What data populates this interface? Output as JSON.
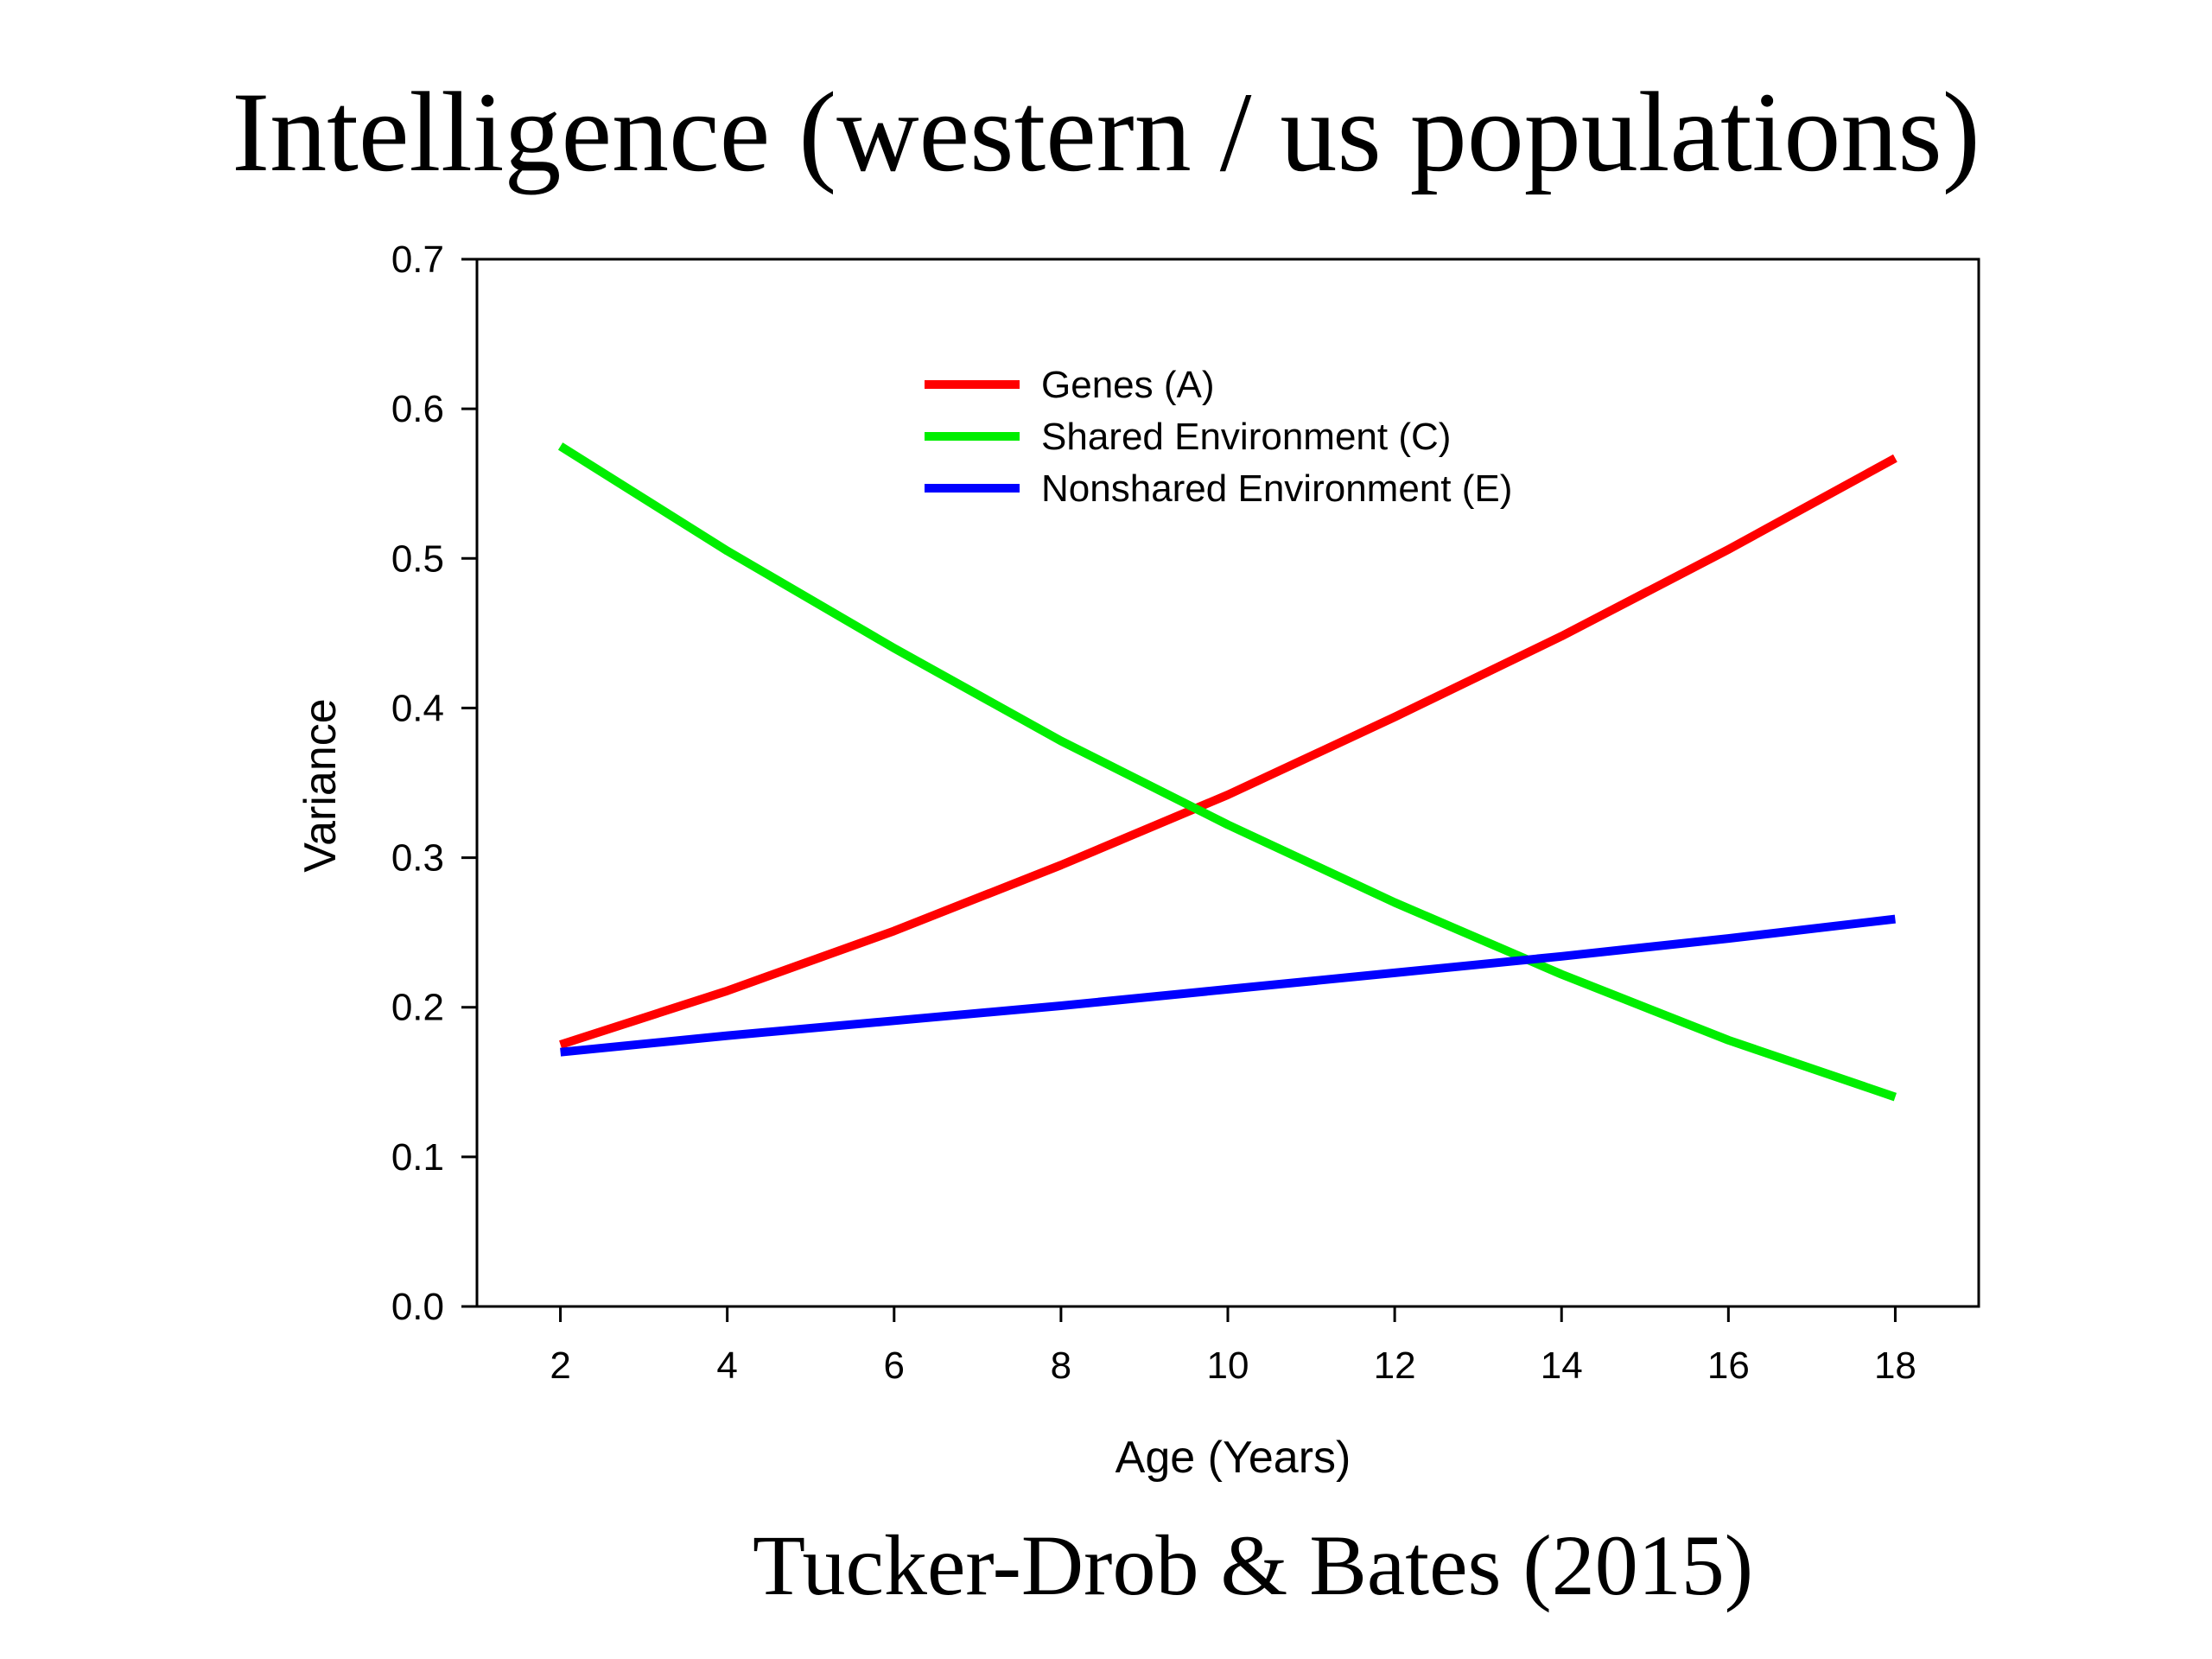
{
  "slide": {
    "title": "Intelligence (western / us populations)",
    "citation": "Tucker-Drob & Bates (2015)"
  },
  "chart_data": {
    "type": "line",
    "title": "",
    "xlabel": "Age (Years)",
    "ylabel": "Variance",
    "xlim": [
      1,
      19
    ],
    "ylim": [
      0,
      0.7
    ],
    "xticks": [
      2,
      4,
      6,
      8,
      10,
      12,
      14,
      16,
      18
    ],
    "xtick_labels": [
      "2",
      "4",
      "6",
      "8",
      "10",
      "12",
      "14",
      "16",
      "18"
    ],
    "yticks": [
      0,
      0.1,
      0.2,
      0.3,
      0.4,
      0.5,
      0.6,
      0.7
    ],
    "ytick_labels": [
      "0.0",
      "0.1",
      "0.2",
      "0.3",
      "0.4",
      "0.5",
      "0.6",
      "0.7"
    ],
    "grid": false,
    "legend_position": "top-center",
    "x": [
      2,
      4,
      6,
      8,
      10,
      12,
      14,
      16,
      18
    ],
    "series": [
      {
        "name": "Genes (A)",
        "color": "#ff0000",
        "values": [
          0.175,
          0.211,
          0.251,
          0.295,
          0.342,
          0.394,
          0.448,
          0.506,
          0.567
        ]
      },
      {
        "name": "Shared Environment (C)",
        "color": "#00ee00",
        "values": [
          0.575,
          0.505,
          0.44,
          0.378,
          0.322,
          0.27,
          0.222,
          0.178,
          0.14
        ]
      },
      {
        "name": "Nonshared Environment (E)",
        "color": "#0000ff",
        "values": [
          0.17,
          0.181,
          0.191,
          0.201,
          0.212,
          0.223,
          0.234,
          0.246,
          0.259
        ]
      }
    ]
  }
}
